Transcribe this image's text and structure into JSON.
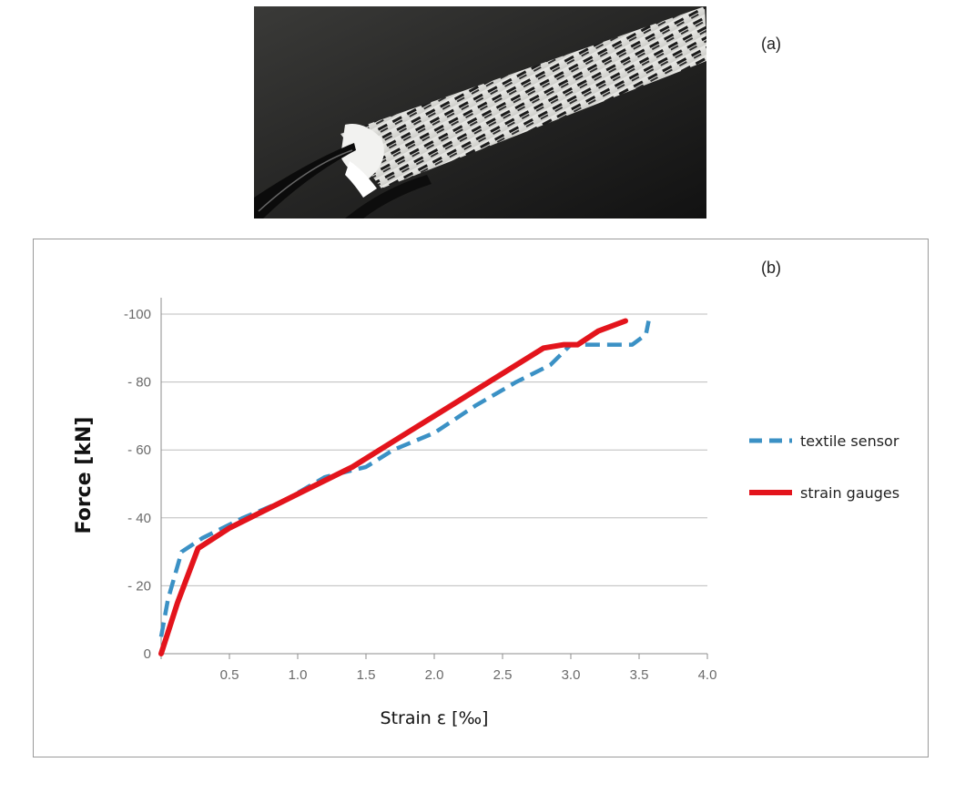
{
  "panel_a": {
    "label": "(a)"
  },
  "panel_b": {
    "label": "(b)"
  },
  "colors": {
    "textile": "#3b91c5",
    "strain": "#e3141c",
    "grid": "#bdbdbd",
    "axis": "#8c8c8c"
  },
  "chart_data": {
    "type": "line",
    "title": "",
    "xlabel": "Strain ε [‰]",
    "ylabel": "Force [kN]",
    "xlim": [
      0,
      4.0
    ],
    "ylim": [
      0,
      -100
    ],
    "xticks": [
      0,
      0.5,
      1.0,
      1.5,
      2.0,
      2.5,
      3.0,
      3.5,
      4.0
    ],
    "xtick_labels": [
      "",
      "0.5",
      "1.0",
      "1.5",
      "2.0",
      "2.5",
      "3.0",
      "3.5",
      "4.0"
    ],
    "yticks": [
      0,
      -20,
      -40,
      -60,
      -80,
      -100
    ],
    "ytick_labels": [
      "0",
      "- 20",
      "- 40",
      "- 60",
      "- 80",
      "-100"
    ],
    "grid": "horizontal",
    "legend_position": "right",
    "series": [
      {
        "name": "textile sensor",
        "style": "dashed",
        "color": "#3b91c5",
        "x": [
          0,
          0.05,
          0.15,
          0.3,
          0.6,
          0.9,
          1.2,
          1.5,
          1.7,
          2.0,
          2.3,
          2.6,
          2.85,
          3.0,
          3.2,
          3.45,
          3.55,
          3.57
        ],
        "y": [
          -5,
          -16,
          -30,
          -34,
          -40,
          -45,
          -52,
          -55,
          -60,
          -65,
          -73,
          -80,
          -85,
          -91,
          -91,
          -91,
          -94,
          -98
        ]
      },
      {
        "name": "strain gauges",
        "style": "solid",
        "color": "#e3141c",
        "x": [
          0,
          0.12,
          0.27,
          0.5,
          0.8,
          1.1,
          1.4,
          1.6,
          1.8,
          2.0,
          2.2,
          2.4,
          2.6,
          2.8,
          2.95,
          3.05,
          3.2,
          3.4
        ],
        "y": [
          0,
          -15,
          -31,
          -37,
          -43,
          -49,
          -55,
          -60,
          -65,
          -70,
          -75,
          -80,
          -85,
          -90,
          -91,
          -91,
          -95,
          -98
        ]
      }
    ]
  }
}
